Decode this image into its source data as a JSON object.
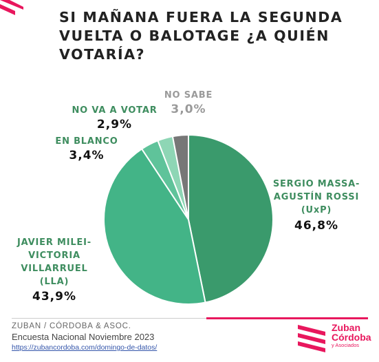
{
  "title_lines": [
    "SI MAÑANA FUERA LA SEGUNDA",
    "VUELTA O BALOTAGE ¿A QUIÉN",
    "VOTARÍA?"
  ],
  "chart_data": {
    "type": "pie",
    "title": "SI MAÑANA FUERA LA SEGUNDA VUELTA O BALOTAGE ¿A QUIÉN VOTARÍA?",
    "slices": [
      {
        "label_lines": [
          "SERGIO MASSA-",
          "AGUSTÍN ROSSI",
          "(UxP)"
        ],
        "value": 46.8,
        "value_label": "46,8%",
        "color": "#3a9a6c",
        "label_color": "#3e8d5f"
      },
      {
        "label_lines": [
          "JAVIER MILEI-",
          "VICTORIA",
          "VILLARRUEL",
          "(LLA)"
        ],
        "value": 43.9,
        "value_label": "43,9%",
        "color": "#43b487",
        "label_color": "#3e8d5f"
      },
      {
        "label_lines": [
          "EN BLANCO"
        ],
        "value": 3.4,
        "value_label": "3,4%",
        "color": "#5fc39a",
        "label_color": "#3e8d5f"
      },
      {
        "label_lines": [
          "NO VA A VOTAR"
        ],
        "value": 2.9,
        "value_label": "2,9%",
        "color": "#8ed6b5",
        "label_color": "#3e8d5f"
      },
      {
        "label_lines": [
          "NO SABE"
        ],
        "value": 3.0,
        "value_label": "3,0%",
        "color": "#777777",
        "label_color": "#9a9a9a",
        "value_color": "#9a9a9a"
      }
    ]
  },
  "footer": {
    "source": "ZUBAN / CÓRDOBA & ASOC.",
    "survey": "Encuesta Nacional Noviembre 2023",
    "link": "https://zubancordoba.com/domingo-de-datos/"
  },
  "logo": {
    "line1": "Zuban",
    "line2": "Córdoba",
    "line3": "y Asociados"
  },
  "colors": {
    "accent": "#e8175d",
    "footer_gray": "#cccccc"
  }
}
